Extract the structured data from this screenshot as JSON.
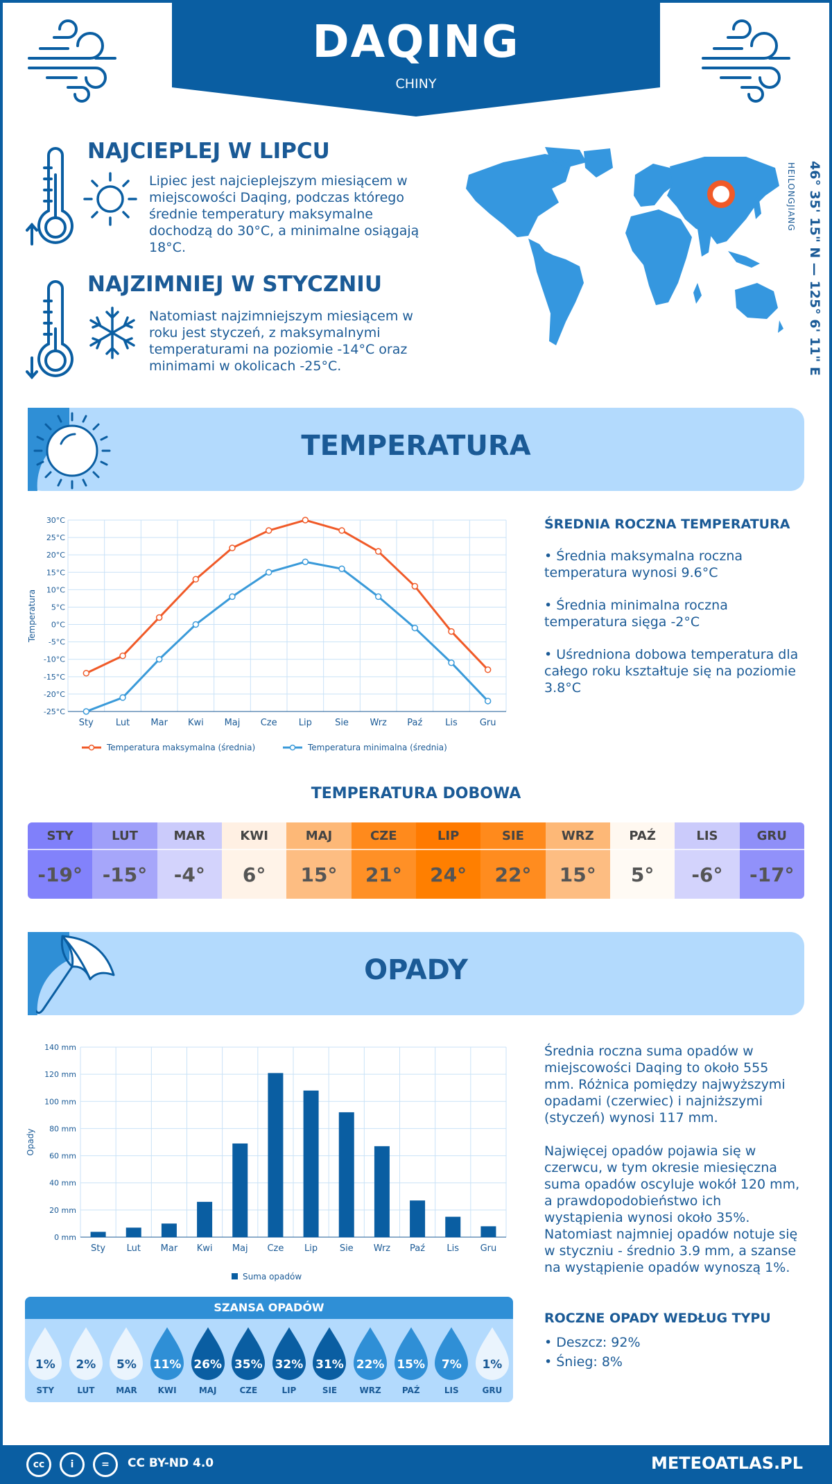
{
  "header": {
    "city": "DAQING",
    "country": "CHINY"
  },
  "hottest": {
    "title": "NAJCIEPLEJ W LIPCU",
    "text": "Lipiec jest najcieplejszym miesiącem w miejscowości Daqing, podczas którego średnie temperatury maksymalne dochodzą do 30°C, a minimalne osiągają 18°C."
  },
  "coldest": {
    "title": "NAJZIMNIEJ W STYCZNIU",
    "text": "Natomiast najzimniejszym miesiącem w roku jest styczeń, z maksymalnymi temperaturami na poziomie -14°C oraz minimami w okolicach -25°C."
  },
  "location": {
    "coords": "46° 35' 15\" N — 125° 6' 11\" E",
    "region": "HEILONGJIANG"
  },
  "temperature_section": {
    "title": "TEMPERATURA",
    "side_title": "ŚREDNIA ROCZNA TEMPERATURA",
    "bullets": [
      "• Średnia maksymalna roczna temperatura wynosi 9.6°C",
      "• Średnia minimalna roczna temperatura sięga -2°C",
      "• Uśredniona dobowa temperatura dla całego roku kształtuje się na poziomie 3.8°C"
    ]
  },
  "daily_temp": {
    "title": "TEMPERATURA DOBOWA",
    "months": [
      "STY",
      "LUT",
      "MAR",
      "KWI",
      "MAJ",
      "CZE",
      "LIP",
      "SIE",
      "WRZ",
      "PAŹ",
      "LIS",
      "GRU"
    ],
    "values": [
      "-19°",
      "-15°",
      "-4°",
      "6°",
      "15°",
      "21°",
      "24°",
      "22°",
      "15°",
      "5°",
      "-6°",
      "-17°"
    ],
    "head_colors": [
      "#8080fa",
      "#9f9ff9",
      "#cbcbfb",
      "#fff0e3",
      "#fdb877",
      "#ff8a1c",
      "#ff7a00",
      "#ff8a1c",
      "#fdb877",
      "#fff8f0",
      "#cbcbfb",
      "#8f8ff8"
    ],
    "val_colors": [
      "#8282fb",
      "#a6a6fa",
      "#d3d3fc",
      "#fff3e8",
      "#fdbd82",
      "#ff9026",
      "#ff7f00",
      "#ff8c1f",
      "#fdbd82",
      "#fffaf4",
      "#d3d3fc",
      "#9191fa"
    ]
  },
  "precip_section": {
    "title": "OPADY",
    "text1": "Średnia roczna suma opadów w miejscowości Daqing to około 555 mm. Różnica pomiędzy najwyższymi opadami (czerwiec) i najniższymi (styczeń) wynosi 117 mm.",
    "text2": "Najwięcej opadów pojawia się w czerwcu, w tym okresie miesięczna suma opadów oscyluje wokół 120 mm, a prawdopodobieństwo ich wystąpienia wynosi około 35%. Natomiast najmniej opadów notuje się w styczniu - średnio 3.9 mm, a szanse na wystąpienie opadów wynoszą 1%.",
    "types_title": "ROCZNE OPADY WEDŁUG TYPU",
    "types": [
      "• Deszcz: 92%",
      "• Śnieg: 8%"
    ]
  },
  "chance": {
    "title": "SZANSA OPADÓW",
    "months": [
      "STY",
      "LUT",
      "MAR",
      "KWI",
      "MAJ",
      "CZE",
      "LIP",
      "SIE",
      "WRZ",
      "PAŹ",
      "LIS",
      "GRU"
    ],
    "values": [
      "1%",
      "2%",
      "5%",
      "11%",
      "26%",
      "35%",
      "32%",
      "31%",
      "22%",
      "15%",
      "7%",
      "1%"
    ],
    "colors": [
      "#eaf4fd",
      "#eaf4fd",
      "#eaf4fd",
      "#2f8fd6",
      "#0a5ea2",
      "#0a5ea2",
      "#0a5ea2",
      "#0a5ea2",
      "#2f8fd6",
      "#2f8fd6",
      "#2f8fd6",
      "#eaf4fd"
    ],
    "text_colors": [
      "#1a5a96",
      "#1a5a96",
      "#1a5a96",
      "#ffffff",
      "#ffffff",
      "#ffffff",
      "#ffffff",
      "#ffffff",
      "#ffffff",
      "#ffffff",
      "#ffffff",
      "#1a5a96"
    ]
  },
  "footer": {
    "license": "CC BY-ND 4.0",
    "site": "METEOATLAS.PL"
  },
  "chart_data": [
    {
      "type": "line",
      "ylabel": "Temperatura",
      "categories": [
        "Sty",
        "Lut",
        "Mar",
        "Kwi",
        "Maj",
        "Cze",
        "Lip",
        "Sie",
        "Wrz",
        "Paź",
        "Lis",
        "Gru"
      ],
      "yticks": [
        "30°C",
        "25°C",
        "20°C",
        "15°C",
        "10°C",
        "5°C",
        "0°C",
        "-5°C",
        "-10°C",
        "-15°C",
        "-20°C",
        "-25°C"
      ],
      "ylim": [
        -25,
        30
      ],
      "series": [
        {
          "name": "Temperatura maksymalna (średnia)",
          "color": "#f05a28",
          "values": [
            -14,
            -9,
            2,
            13,
            22,
            27,
            30,
            27,
            21,
            11,
            -2,
            -13
          ]
        },
        {
          "name": "Temperatura minimalna (średnia)",
          "color": "#3a9ad9",
          "values": [
            -25,
            -21,
            -10,
            0,
            8,
            15,
            18,
            16,
            8,
            -1,
            -11,
            -22
          ]
        }
      ],
      "legend": "bottom",
      "grid": true
    },
    {
      "type": "bar",
      "ylabel": "Opady",
      "categories": [
        "Sty",
        "Lut",
        "Mar",
        "Kwi",
        "Maj",
        "Cze",
        "Lip",
        "Sie",
        "Wrz",
        "Paź",
        "Lis",
        "Gru"
      ],
      "yticks": [
        "140 mm",
        "120 mm",
        "100 mm",
        "80 mm",
        "60 mm",
        "40 mm",
        "20 mm",
        "0 mm"
      ],
      "ylim": [
        0,
        140
      ],
      "series": [
        {
          "name": "Suma opadów",
          "color": "#0a5ea2",
          "values": [
            3.9,
            7,
            10,
            26,
            69,
            120.9,
            108,
            92,
            67,
            27,
            15,
            8
          ]
        }
      ],
      "legend": "bottom",
      "grid": true
    }
  ]
}
